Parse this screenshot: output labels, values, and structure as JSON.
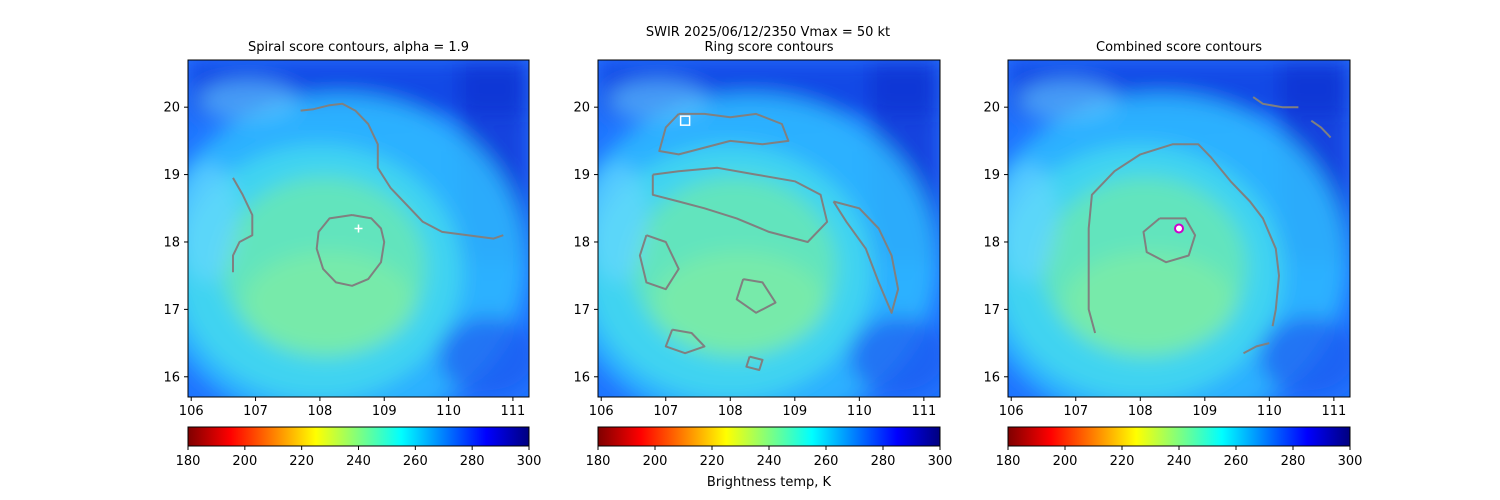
{
  "figure": {
    "suptitle": "SWIR  2025/06/12/2350    Vmax = 50 kt"
  },
  "colormap": {
    "name": "jet_r",
    "stops": [
      "#7f0000",
      "#ff0000",
      "#ff7f00",
      "#ffff00",
      "#7fff7f",
      "#00ffff",
      "#007fff",
      "#0000ff",
      "#00007f"
    ]
  },
  "colors": {
    "contour": "#808080",
    "marker_spiral": "#ffffff",
    "marker_ring": "#ffffff",
    "marker_combined": "#cc00cc"
  },
  "colorbar": {
    "range": [
      180,
      300
    ],
    "ticks": [
      "180",
      "200",
      "220",
      "240",
      "260",
      "280",
      "300"
    ],
    "label": "Brightness temp, K"
  },
  "chart_data": [
    {
      "type": "heatmap",
      "title": "Spiral score contours, alpha =  1.9",
      "xlim": [
        105.95,
        111.25
      ],
      "ylim": [
        15.7,
        20.7
      ],
      "xticks": [
        "106",
        "107",
        "108",
        "109",
        "110",
        "111"
      ],
      "yticks": [
        "16",
        "17",
        "18",
        "19",
        "20"
      ],
      "value_range_K": [
        180,
        300
      ],
      "center_lon": 108.6,
      "center_lat": 18.2,
      "marker": "cross",
      "contours": [
        [
          [
            108.5,
            18.4
          ],
          [
            108.8,
            18.35
          ],
          [
            108.95,
            18.2
          ],
          [
            109.0,
            18.0
          ],
          [
            108.95,
            17.7
          ],
          [
            108.75,
            17.45
          ],
          [
            108.5,
            17.35
          ],
          [
            108.25,
            17.4
          ],
          [
            108.05,
            17.6
          ],
          [
            107.95,
            17.9
          ],
          [
            107.98,
            18.15
          ],
          [
            108.15,
            18.35
          ],
          [
            108.5,
            18.4
          ]
        ],
        [
          [
            107.7,
            19.95
          ],
          [
            107.9,
            19.97
          ],
          [
            108.15,
            20.03
          ],
          [
            108.35,
            20.05
          ],
          [
            108.55,
            19.95
          ],
          [
            108.75,
            19.75
          ],
          [
            108.9,
            19.45
          ],
          [
            108.9,
            19.1
          ],
          [
            109.1,
            18.8
          ],
          [
            109.4,
            18.5
          ],
          [
            109.6,
            18.3
          ],
          [
            109.9,
            18.15
          ],
          [
            110.3,
            18.1
          ],
          [
            110.7,
            18.05
          ],
          [
            110.85,
            18.1
          ]
        ],
        [
          [
            106.65,
            18.95
          ],
          [
            106.8,
            18.7
          ],
          [
            106.95,
            18.4
          ],
          [
            106.95,
            18.1
          ],
          [
            106.75,
            18.0
          ],
          [
            106.65,
            17.8
          ],
          [
            106.65,
            17.55
          ]
        ]
      ]
    },
    {
      "type": "heatmap",
      "title": "Ring score contours",
      "xlim": [
        105.95,
        111.25
      ],
      "ylim": [
        15.7,
        20.7
      ],
      "xticks": [
        "106",
        "107",
        "108",
        "109",
        "110",
        "111"
      ],
      "yticks": [
        "16",
        "17",
        "18",
        "19",
        "20"
      ],
      "value_range_K": [
        180,
        300
      ],
      "center_lon": 107.3,
      "center_lat": 19.8,
      "marker": "square",
      "contours": [
        [
          [
            107.2,
            19.9
          ],
          [
            107.6,
            19.9
          ],
          [
            108.0,
            19.85
          ],
          [
            108.4,
            19.9
          ],
          [
            108.8,
            19.75
          ],
          [
            108.9,
            19.5
          ],
          [
            108.5,
            19.45
          ],
          [
            108.0,
            19.5
          ],
          [
            107.6,
            19.4
          ],
          [
            107.2,
            19.3
          ],
          [
            106.9,
            19.35
          ],
          [
            107.0,
            19.7
          ],
          [
            107.2,
            19.9
          ]
        ],
        [
          [
            106.8,
            19.0
          ],
          [
            107.2,
            19.05
          ],
          [
            107.8,
            19.1
          ],
          [
            108.4,
            19.0
          ],
          [
            109.0,
            18.9
          ],
          [
            109.4,
            18.7
          ],
          [
            109.5,
            18.3
          ],
          [
            109.2,
            18.0
          ],
          [
            108.6,
            18.15
          ],
          [
            108.1,
            18.35
          ],
          [
            107.6,
            18.5
          ],
          [
            107.2,
            18.6
          ],
          [
            106.8,
            18.7
          ],
          [
            106.8,
            19.0
          ]
        ],
        [
          [
            109.6,
            18.6
          ],
          [
            110.0,
            18.5
          ],
          [
            110.3,
            18.2
          ],
          [
            110.5,
            17.8
          ],
          [
            110.6,
            17.3
          ],
          [
            110.5,
            16.95
          ],
          [
            110.3,
            17.4
          ],
          [
            110.1,
            17.9
          ],
          [
            109.8,
            18.3
          ],
          [
            109.6,
            18.6
          ]
        ],
        [
          [
            106.7,
            18.1
          ],
          [
            107.0,
            18.0
          ],
          [
            107.2,
            17.6
          ],
          [
            107.0,
            17.3
          ],
          [
            106.7,
            17.4
          ],
          [
            106.6,
            17.8
          ],
          [
            106.7,
            18.1
          ]
        ],
        [
          [
            107.1,
            16.7
          ],
          [
            107.4,
            16.65
          ],
          [
            107.6,
            16.45
          ],
          [
            107.3,
            16.35
          ],
          [
            107.0,
            16.45
          ],
          [
            107.1,
            16.7
          ]
        ],
        [
          [
            108.2,
            17.45
          ],
          [
            108.5,
            17.4
          ],
          [
            108.7,
            17.1
          ],
          [
            108.4,
            16.95
          ],
          [
            108.1,
            17.15
          ],
          [
            108.2,
            17.45
          ]
        ],
        [
          [
            108.3,
            16.3
          ],
          [
            108.5,
            16.25
          ],
          [
            108.45,
            16.1
          ],
          [
            108.25,
            16.15
          ],
          [
            108.3,
            16.3
          ]
        ]
      ]
    },
    {
      "type": "heatmap",
      "title": "Combined score contours",
      "xlim": [
        105.95,
        111.25
      ],
      "ylim": [
        15.7,
        20.7
      ],
      "xticks": [
        "106",
        "107",
        "108",
        "109",
        "110",
        "111"
      ],
      "yticks": [
        "16",
        "17",
        "18",
        "19",
        "20"
      ],
      "value_range_K": [
        180,
        300
      ],
      "center_lon": 108.6,
      "center_lat": 18.2,
      "marker": "circle",
      "contours": [
        [
          [
            108.3,
            18.35
          ],
          [
            108.7,
            18.35
          ],
          [
            108.85,
            18.1
          ],
          [
            108.75,
            17.8
          ],
          [
            108.4,
            17.7
          ],
          [
            108.1,
            17.85
          ],
          [
            108.05,
            18.15
          ],
          [
            108.3,
            18.35
          ]
        ],
        [
          [
            107.3,
            16.65
          ],
          [
            107.2,
            17.0
          ],
          [
            107.2,
            17.6
          ],
          [
            107.2,
            18.2
          ],
          [
            107.25,
            18.7
          ],
          [
            107.6,
            19.05
          ],
          [
            108.0,
            19.3
          ],
          [
            108.5,
            19.45
          ],
          [
            108.9,
            19.45
          ],
          [
            109.1,
            19.25
          ],
          [
            109.4,
            18.9
          ],
          [
            109.7,
            18.6
          ],
          [
            109.9,
            18.35
          ],
          [
            110.1,
            17.9
          ],
          [
            110.15,
            17.5
          ],
          [
            110.1,
            17.0
          ],
          [
            110.05,
            16.75
          ]
        ],
        [
          [
            109.75,
            20.15
          ],
          [
            109.9,
            20.05
          ],
          [
            110.2,
            20.0
          ],
          [
            110.45,
            20.0
          ]
        ],
        [
          [
            110.65,
            19.8
          ],
          [
            110.8,
            19.7
          ],
          [
            110.9,
            19.6
          ],
          [
            110.95,
            19.55
          ]
        ],
        [
          [
            109.6,
            16.35
          ],
          [
            109.8,
            16.45
          ],
          [
            110.0,
            16.5
          ]
        ]
      ]
    }
  ]
}
